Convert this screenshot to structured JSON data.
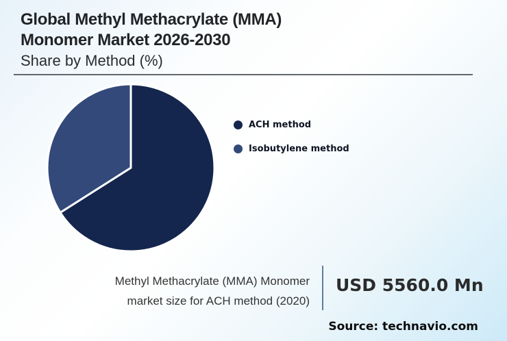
{
  "header": {
    "title_line1": "Global Methyl Methacrylate (MMA)",
    "title_line2": "Monomer Market 2026-2030",
    "subtitle": "Share by Method (%)"
  },
  "chart_data": {
    "type": "pie",
    "title": "Global Methyl Methacrylate (MMA) Monomer Market 2026-2030",
    "subtitle": "Share by Method (%)",
    "categories": [
      "ACH method",
      "Isobutylene method"
    ],
    "values": [
      66,
      34
    ],
    "unit": "%",
    "colors": [
      "#14264d",
      "#33497a"
    ],
    "start_angle": "12 o'clock, clockwise",
    "slice_gap_color": "#ffffff",
    "legend_position": "right",
    "data_labels": false
  },
  "legend": {
    "items": [
      {
        "label": "ACH method",
        "color": "#14264d"
      },
      {
        "label": "Isobutylene method",
        "color": "#33497a"
      }
    ]
  },
  "annotation": {
    "caption_line1": "Methyl Methacrylate (MMA) Monomer",
    "caption_line2": "market size for ACH method (2020)",
    "value": "USD 5560.0 Mn"
  },
  "footer": {
    "source": "Source: technavio.com"
  },
  "colors": {
    "title_text": "#212326",
    "rule_gray": "#61676c",
    "divider_slate": "#5f7e9d",
    "background_corner_blue": "#cdeaf8"
  }
}
